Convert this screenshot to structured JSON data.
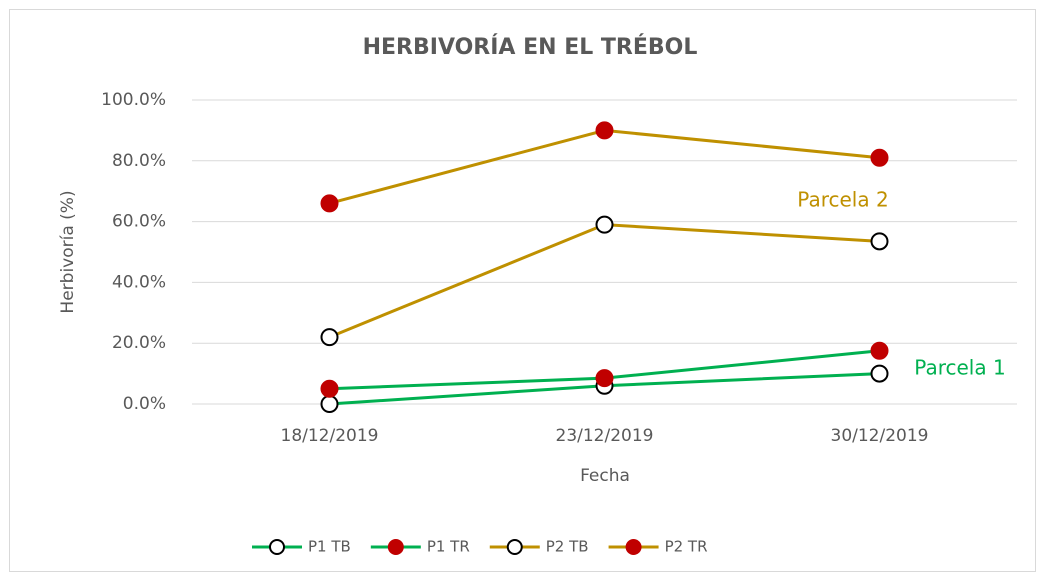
{
  "chart_data": {
    "type": "line",
    "title": "HERBIVORÍA  EN EL TRÉBOL",
    "xlabel": "Fecha",
    "ylabel": "Herbivoría (%)",
    "categories": [
      "18/12/2019",
      "23/12/2019",
      "30/12/2019"
    ],
    "series": [
      {
        "name": "P1 TB",
        "color": "#00b050",
        "marker_fill": "#ffffff",
        "values": [
          0,
          6,
          10
        ]
      },
      {
        "name": "P1 TR",
        "color": "#00b050",
        "marker_fill": "#c00000",
        "values": [
          5,
          8.5,
          17.5
        ]
      },
      {
        "name": "P2 TB",
        "color": "#bf9000",
        "marker_fill": "#ffffff",
        "values": [
          22,
          59,
          53.5
        ]
      },
      {
        "name": "P2 TR",
        "color": "#bf9000",
        "marker_fill": "#c00000",
        "values": [
          66,
          90,
          81
        ]
      }
    ],
    "annotations": [
      {
        "text": "Parcela 2",
        "color": "#bf9000"
      },
      {
        "text": "Parcela 1",
        "color": "#00b050"
      }
    ],
    "ylim": [
      0,
      100
    ],
    "yticks": [
      {
        "value": 0,
        "label": "0.0%"
      },
      {
        "value": 20,
        "label": "20.0%"
      },
      {
        "value": 40,
        "label": "40.0%"
      },
      {
        "value": 60,
        "label": "60.0%"
      },
      {
        "value": 80,
        "label": "80.0%"
      },
      {
        "value": 100,
        "label": "100.0%"
      }
    ],
    "grid": true,
    "legend": "bottom"
  }
}
